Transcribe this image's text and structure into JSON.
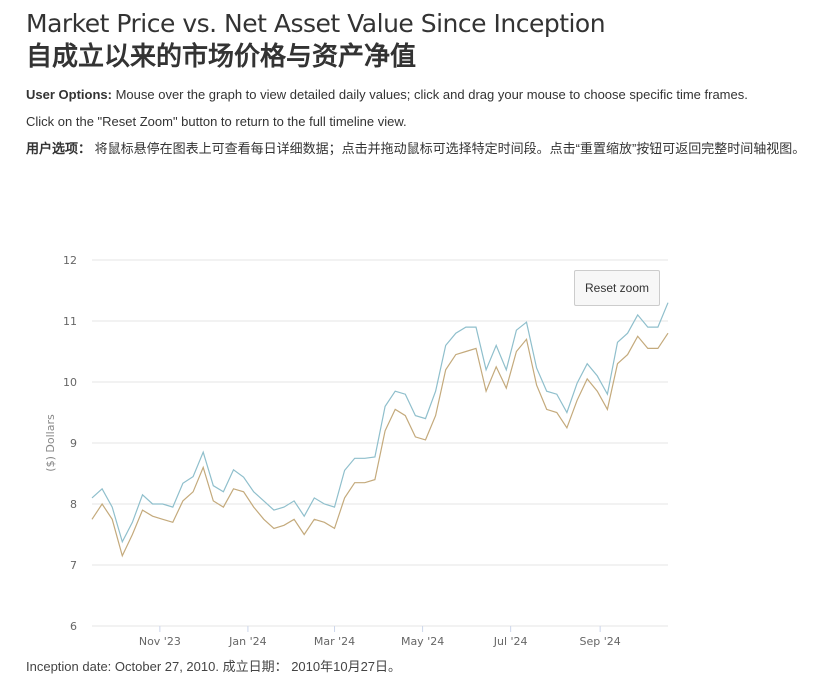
{
  "title_en": "Market Price vs. Net Asset Value Since Inception",
  "title_zh": "自成立以来的市场价格与资产净值",
  "options_label": "User Options:",
  "options_text": " Mouse over the graph to view detailed daily values; click and drag your mouse to choose specific time frames.",
  "options_text2": "Click on the \"Reset Zoom\" button to return to the full timeline view.",
  "options_label_zh": "用户选项：",
  "options_text_zh": " 将鼠标悬停在图表上可查看每日详细数据；点击并拖动鼠标可选择特定时间段。点击“重置缩放”按钮可返回完整时间轴视图。",
  "reset_zoom": "Reset zoom",
  "footer": "Inception date: October 27, 2010. 成立日期： 2010年10月27日。",
  "chart_data": {
    "type": "line",
    "ylabel": "($) Dollars",
    "ylim": [
      6,
      12
    ],
    "yticks": [
      6,
      7,
      8,
      9,
      10,
      11,
      12
    ],
    "xlim": [
      "2023-09-15",
      "2024-10-18"
    ],
    "xticks": [
      {
        "date": "2023-11-01",
        "label": "Nov '23"
      },
      {
        "date": "2024-01-01",
        "label": "Jan '24"
      },
      {
        "date": "2024-03-01",
        "label": "Mar '24"
      },
      {
        "date": "2024-05-01",
        "label": "May '24"
      },
      {
        "date": "2024-07-01",
        "label": "Jul '24"
      },
      {
        "date": "2024-09-01",
        "label": "Sep '24"
      }
    ],
    "grid": true,
    "x": [
      "2023-09-15",
      "2023-09-22",
      "2023-09-29",
      "2023-10-06",
      "2023-10-13",
      "2023-10-20",
      "2023-10-27",
      "2023-11-03",
      "2023-11-10",
      "2023-11-17",
      "2023-11-24",
      "2023-12-01",
      "2023-12-08",
      "2023-12-15",
      "2023-12-22",
      "2023-12-29",
      "2024-01-05",
      "2024-01-12",
      "2024-01-19",
      "2024-01-26",
      "2024-02-02",
      "2024-02-09",
      "2024-02-16",
      "2024-02-23",
      "2024-03-01",
      "2024-03-08",
      "2024-03-15",
      "2024-03-22",
      "2024-03-29",
      "2024-04-05",
      "2024-04-12",
      "2024-04-19",
      "2024-04-26",
      "2024-05-03",
      "2024-05-10",
      "2024-05-17",
      "2024-05-24",
      "2024-05-31",
      "2024-06-07",
      "2024-06-14",
      "2024-06-21",
      "2024-06-28",
      "2024-07-05",
      "2024-07-12",
      "2024-07-19",
      "2024-07-26",
      "2024-08-02",
      "2024-08-09",
      "2024-08-16",
      "2024-08-23",
      "2024-08-30",
      "2024-09-06",
      "2024-09-13",
      "2024-09-20",
      "2024-09-27",
      "2024-10-04",
      "2024-10-11",
      "2024-10-18"
    ],
    "series": [
      {
        "color": "#8fbfcc",
        "values": [
          8.1,
          8.25,
          7.95,
          7.38,
          7.7,
          8.15,
          8.0,
          8.0,
          7.95,
          8.34,
          8.45,
          8.85,
          8.3,
          8.2,
          8.56,
          8.44,
          8.2,
          8.05,
          7.9,
          7.95,
          8.05,
          7.8,
          8.1,
          8.0,
          7.95,
          8.55,
          8.75,
          8.75,
          8.77,
          9.6,
          9.85,
          9.8,
          9.45,
          9.4,
          9.85,
          10.6,
          10.8,
          10.9,
          10.9,
          10.2,
          10.6,
          10.2,
          10.85,
          10.98,
          10.23,
          9.85,
          9.8,
          9.5,
          9.98,
          10.3,
          10.1,
          9.8,
          10.65,
          10.8,
          11.1,
          10.9,
          10.9,
          11.3
        ]
      },
      {
        "color": "#c4aa7c",
        "values": [
          7.75,
          8.0,
          7.75,
          7.15,
          7.5,
          7.9,
          7.8,
          7.75,
          7.7,
          8.05,
          8.2,
          8.6,
          8.05,
          7.95,
          8.25,
          8.2,
          7.95,
          7.75,
          7.6,
          7.65,
          7.75,
          7.5,
          7.75,
          7.7,
          7.6,
          8.1,
          8.35,
          8.35,
          8.4,
          9.2,
          9.55,
          9.45,
          9.1,
          9.05,
          9.45,
          10.2,
          10.45,
          10.5,
          10.55,
          9.85,
          10.25,
          9.9,
          10.5,
          10.7,
          9.95,
          9.55,
          9.5,
          9.25,
          9.7,
          10.05,
          9.85,
          9.55,
          10.3,
          10.45,
          10.75,
          10.55,
          10.55,
          10.8
        ]
      }
    ]
  }
}
